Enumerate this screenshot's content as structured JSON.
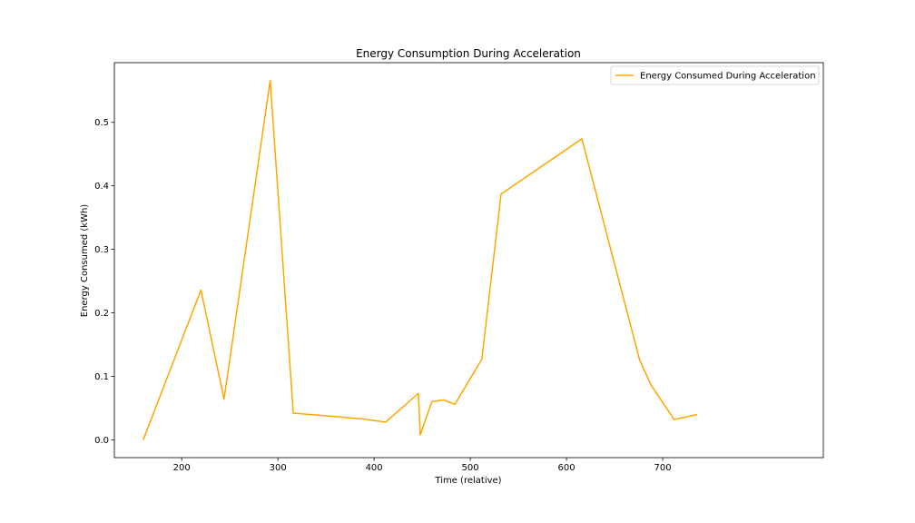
{
  "chart_data": {
    "type": "line",
    "title": "Energy Consumption During Acceleration",
    "xlabel": "Time (relative)",
    "ylabel": "Energy Consumed (kWh)",
    "xlim": [
      130,
      867
    ],
    "ylim": [
      -0.028,
      0.594
    ],
    "xticks": [
      200,
      300,
      400,
      500,
      600,
      700
    ],
    "yticks": [
      0.0,
      0.1,
      0.2,
      0.3,
      0.4,
      0.5
    ],
    "ytick_labels": [
      "0.0",
      "0.1",
      "0.2",
      "0.3",
      "0.4",
      "0.5"
    ],
    "grid": false,
    "legend_position": "top-right",
    "series": [
      {
        "name": "Energy Consumed During Acceleration",
        "color": "#FFA500",
        "x": [
          160,
          220,
          244,
          292,
          316,
          388,
          412,
          446,
          448,
          460,
          472,
          484,
          512,
          532,
          616,
          676,
          688,
          712,
          736
        ],
        "y": [
          0.0,
          0.236,
          0.064,
          0.566,
          0.042,
          0.033,
          0.028,
          0.073,
          0.008,
          0.06,
          0.063,
          0.056,
          0.127,
          0.387,
          0.474,
          0.126,
          0.086,
          0.032,
          0.04
        ]
      }
    ]
  }
}
